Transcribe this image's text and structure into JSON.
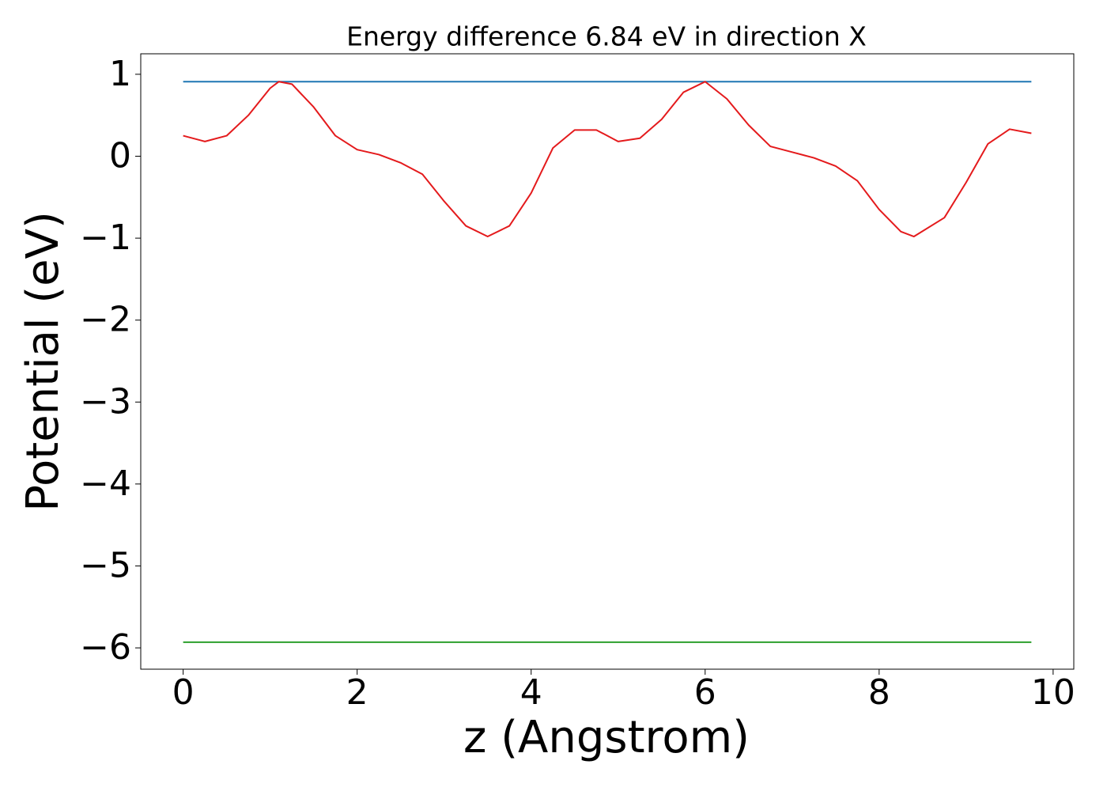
{
  "chart_data": {
    "type": "line",
    "title": "Energy difference 6.84 eV in direction X",
    "xlabel": "z (Angstrom)",
    "ylabel": "Potential (eV)",
    "series": [
      {
        "color": "#1f77b4",
        "x": [
          0,
          9.75
        ],
        "values": [
          0.91,
          0.91
        ]
      },
      {
        "color": "#2ca02c",
        "x": [
          0,
          9.75
        ],
        "values": [
          -5.93,
          -5.93
        ]
      },
      {
        "color": "#e41a1c",
        "x": [
          0,
          0.25,
          0.5,
          0.75,
          1.0,
          1.1,
          1.25,
          1.5,
          1.75,
          2.0,
          2.25,
          2.5,
          2.75,
          3.0,
          3.25,
          3.5,
          3.75,
          4.0,
          4.25,
          4.5,
          4.75,
          5.0,
          5.25,
          5.5,
          5.75,
          6.0,
          6.25,
          6.5,
          6.75,
          7.0,
          7.25,
          7.5,
          7.75,
          8.0,
          8.25,
          8.4,
          8.75,
          9.0,
          9.25,
          9.5,
          9.75
        ],
        "values": [
          0.25,
          0.18,
          0.25,
          0.5,
          0.83,
          0.91,
          0.88,
          0.6,
          0.25,
          0.08,
          0.02,
          -0.08,
          -0.22,
          -0.55,
          -0.85,
          -0.98,
          -0.85,
          -0.45,
          0.1,
          0.32,
          0.32,
          0.18,
          0.22,
          0.45,
          0.78,
          0.91,
          0.7,
          0.38,
          0.12,
          0.05,
          -0.02,
          -0.12,
          -0.3,
          -0.65,
          -0.92,
          -0.98,
          -0.75,
          -0.32,
          0.15,
          0.33,
          0.28
        ]
      }
    ],
    "xlim": [
      -0.4875,
      10.2375
    ],
    "xticks": [
      0,
      2,
      4,
      6,
      8,
      10
    ],
    "ylim": [
      -6.26,
      1.25
    ],
    "yticks": [
      {
        "value": -6,
        "label": "−6"
      },
      {
        "value": -5,
        "label": "−5"
      },
      {
        "value": -4,
        "label": "−4"
      },
      {
        "value": -3,
        "label": "−3"
      },
      {
        "value": -2,
        "label": "−2"
      },
      {
        "value": -1,
        "label": "−1"
      },
      0,
      1
    ],
    "grid": false
  }
}
